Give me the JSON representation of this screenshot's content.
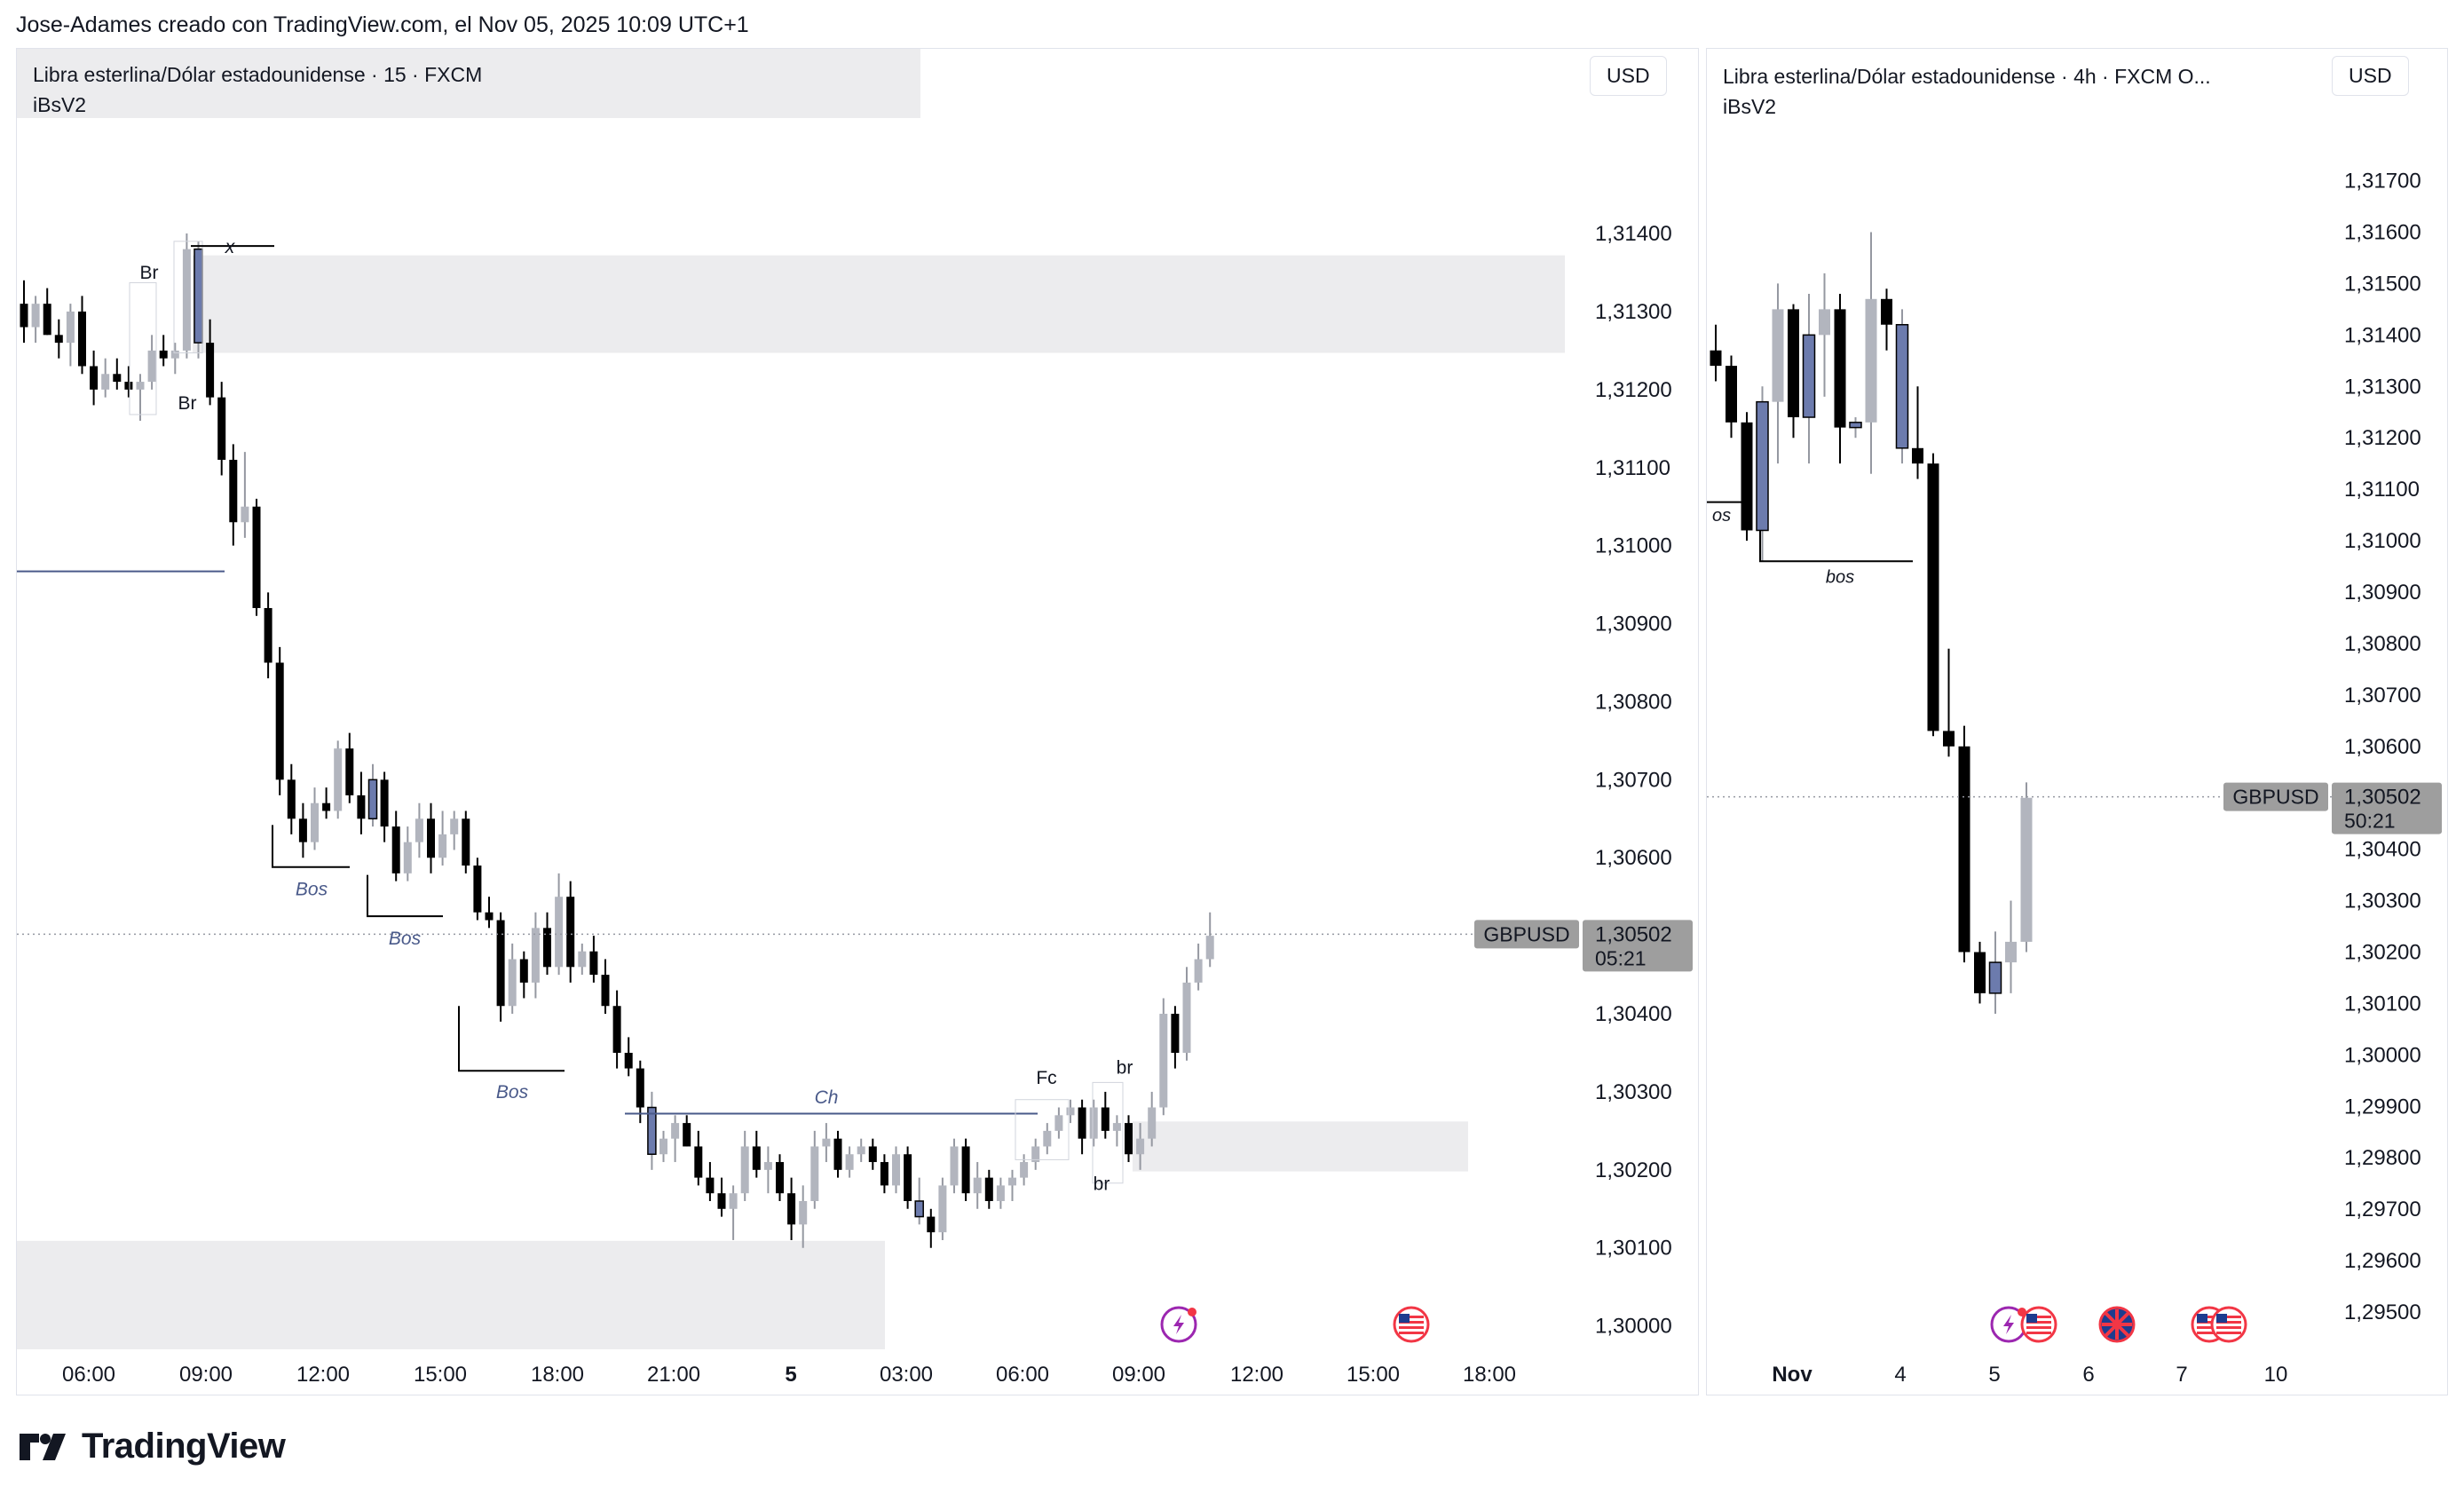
{
  "header": "Jose-Adames creado con TradingView.com, el Nov 05, 2025 10:09 UTC+1",
  "left": {
    "title": "Libra esterlina/Dólar estadounidense · 15 · FXCM",
    "indicator": "iBsV2",
    "currency": "USD",
    "price_labels": [
      "1,31400",
      "1,31300",
      "1,31200",
      "1,31100",
      "1,31000",
      "1,30900",
      "1,30800",
      "1,30700",
      "1,30600",
      "1,30400",
      "1,30300",
      "1,30200",
      "1,30100",
      "1,30000"
    ],
    "time_labels": [
      "06:00",
      "09:00",
      "12:00",
      "15:00",
      "18:00",
      "21:00",
      "5",
      "03:00",
      "06:00",
      "09:00",
      "12:00",
      "15:00",
      "18:00"
    ],
    "symbol_tag": "GBPUSD",
    "last_price": "1,30502",
    "countdown": "05:21",
    "annotations": [
      "Br",
      "x",
      "Br",
      "Bos",
      "Bos",
      "Bos",
      "Ch",
      "Fc",
      "br",
      "br"
    ]
  },
  "right": {
    "title": "Libra esterlina/Dólar estadounidense · 4h · FXCM  O...",
    "indicator": "iBsV2",
    "currency": "USD",
    "price_labels": [
      "1,31700",
      "1,31600",
      "1,31500",
      "1,31400",
      "1,31300",
      "1,31200",
      "1,31100",
      "1,31000",
      "1,30900",
      "1,30800",
      "1,30700",
      "1,30600",
      "1,30400",
      "1,30300",
      "1,30200",
      "1,30100",
      "1,30000",
      "1,29900",
      "1,29800",
      "1,29700",
      "1,29600",
      "1,29500"
    ],
    "time_labels": [
      "Nov",
      "4",
      "5",
      "6",
      "7",
      "10"
    ],
    "symbol_tag": "GBPUSD",
    "last_price": "1,30502",
    "countdown": "50:21",
    "annotations": [
      "os",
      "bos"
    ]
  },
  "brand": "TradingView",
  "icons": [
    "lightning-event-icon",
    "us-flag-icon",
    "uk-flag-icon",
    "tradingview-logo-icon"
  ],
  "colors": {
    "bull_candle": "#b2b5be",
    "bear_candle": "#000000",
    "inside_candle": "#6c7bad",
    "zone": "#ececee",
    "bos_line": "#000000",
    "choch_line": "#4a5a8a",
    "price_tag": "#9e9e9e"
  },
  "chart_data": [
    {
      "type": "candlestick",
      "title": "Libra esterlina/Dólar estadounidense · 15 · FXCM",
      "timeframe": "15",
      "x_ticks": [
        "06:00",
        "09:00",
        "12:00",
        "15:00",
        "18:00",
        "21:00",
        "5",
        "03:00",
        "06:00",
        "09:00",
        "12:00",
        "15:00",
        "18:00"
      ],
      "ylim": [
        1.2997,
        1.3154
      ],
      "last": 1.30502,
      "candles": [
        [
          1.3131,
          1.3134,
          1.3126,
          1.3128
        ],
        [
          1.3128,
          1.3132,
          1.3126,
          1.3131
        ],
        [
          1.3131,
          1.3133,
          1.3127,
          1.3127
        ],
        [
          1.3127,
          1.3129,
          1.3124,
          1.3126
        ],
        [
          1.3126,
          1.3131,
          1.3123,
          1.313
        ],
        [
          1.313,
          1.3132,
          1.3122,
          1.3123
        ],
        [
          1.3123,
          1.3125,
          1.3118,
          1.312
        ],
        [
          1.312,
          1.3124,
          1.3119,
          1.3122
        ],
        [
          1.3122,
          1.3124,
          1.312,
          1.3121
        ],
        [
          1.3121,
          1.3123,
          1.3119,
          1.312
        ],
        [
          1.312,
          1.3122,
          1.3116,
          1.3121
        ],
        [
          1.3121,
          1.3127,
          1.312,
          1.3125
        ],
        [
          1.3125,
          1.3127,
          1.3123,
          1.3124
        ],
        [
          1.3124,
          1.3126,
          1.3122,
          1.3125
        ],
        [
          1.3125,
          1.314,
          1.3124,
          1.3138
        ],
        [
          1.3138,
          1.3139,
          1.3124,
          1.3126
        ],
        [
          1.3126,
          1.3129,
          1.3118,
          1.3119
        ],
        [
          1.3119,
          1.3121,
          1.3109,
          1.3111
        ],
        [
          1.3111,
          1.3113,
          1.31,
          1.3103
        ],
        [
          1.3103,
          1.3112,
          1.3101,
          1.3105
        ],
        [
          1.3105,
          1.3106,
          1.3091,
          1.3092
        ],
        [
          1.3092,
          1.3094,
          1.3083,
          1.3085
        ],
        [
          1.3085,
          1.3087,
          1.3068,
          1.307
        ],
        [
          1.307,
          1.3072,
          1.3063,
          1.3065
        ],
        [
          1.3065,
          1.3067,
          1.306,
          1.3062
        ],
        [
          1.3062,
          1.3069,
          1.3061,
          1.3067
        ],
        [
          1.3067,
          1.3069,
          1.3065,
          1.3066
        ],
        [
          1.3066,
          1.3075,
          1.3065,
          1.3074
        ],
        [
          1.3074,
          1.3076,
          1.3067,
          1.3068
        ],
        [
          1.3068,
          1.3071,
          1.3063,
          1.3065
        ],
        [
          1.3065,
          1.3072,
          1.3064,
          1.307
        ],
        [
          1.307,
          1.3071,
          1.3062,
          1.3064
        ],
        [
          1.3064,
          1.3066,
          1.3057,
          1.3058
        ],
        [
          1.3058,
          1.3064,
          1.3057,
          1.3062
        ],
        [
          1.3062,
          1.3067,
          1.306,
          1.3065
        ],
        [
          1.3065,
          1.3067,
          1.3058,
          1.306
        ],
        [
          1.306,
          1.3066,
          1.3059,
          1.3063
        ],
        [
          1.3063,
          1.3066,
          1.3061,
          1.3065
        ],
        [
          1.3065,
          1.3066,
          1.3058,
          1.3059
        ],
        [
          1.3059,
          1.306,
          1.3052,
          1.3053
        ],
        [
          1.3053,
          1.3055,
          1.3051,
          1.3052
        ],
        [
          1.3052,
          1.3053,
          1.3039,
          1.3041
        ],
        [
          1.3041,
          1.3049,
          1.304,
          1.3047
        ],
        [
          1.3047,
          1.3048,
          1.3042,
          1.3044
        ],
        [
          1.3044,
          1.3053,
          1.3042,
          1.3051
        ],
        [
          1.3051,
          1.3053,
          1.3045,
          1.3046
        ],
        [
          1.3046,
          1.3058,
          1.3045,
          1.3055
        ],
        [
          1.3055,
          1.3057,
          1.3044,
          1.3046
        ],
        [
          1.3046,
          1.3049,
          1.3045,
          1.3048
        ],
        [
          1.3048,
          1.305,
          1.3044,
          1.3045
        ],
        [
          1.3045,
          1.3047,
          1.304,
          1.3041
        ],
        [
          1.3041,
          1.3043,
          1.3033,
          1.3035
        ],
        [
          1.3035,
          1.3037,
          1.3032,
          1.3033
        ],
        [
          1.3033,
          1.3034,
          1.3026,
          1.3028
        ],
        [
          1.3028,
          1.303,
          1.302,
          1.3022
        ],
        [
          1.3022,
          1.3025,
          1.3021,
          1.3024
        ],
        [
          1.3024,
          1.3027,
          1.3021,
          1.3026
        ],
        [
          1.3026,
          1.3027,
          1.3023,
          1.3023
        ],
        [
          1.3023,
          1.3025,
          1.3018,
          1.3019
        ],
        [
          1.3019,
          1.3021,
          1.3016,
          1.3017
        ],
        [
          1.3017,
          1.3019,
          1.3014,
          1.3015
        ],
        [
          1.3015,
          1.3018,
          1.3011,
          1.3017
        ],
        [
          1.3017,
          1.3025,
          1.3016,
          1.3023
        ],
        [
          1.3023,
          1.3025,
          1.3019,
          1.302
        ],
        [
          1.302,
          1.3023,
          1.3017,
          1.3021
        ],
        [
          1.3021,
          1.3022,
          1.3016,
          1.3017
        ],
        [
          1.3017,
          1.3019,
          1.3011,
          1.3013
        ],
        [
          1.3013,
          1.3018,
          1.301,
          1.3016
        ],
        [
          1.3016,
          1.3025,
          1.3015,
          1.3023
        ],
        [
          1.3023,
          1.3026,
          1.3021,
          1.3024
        ],
        [
          1.3024,
          1.3025,
          1.3019,
          1.302
        ],
        [
          1.302,
          1.3023,
          1.3019,
          1.3022
        ],
        [
          1.3022,
          1.3024,
          1.3021,
          1.3023
        ],
        [
          1.3023,
          1.3024,
          1.302,
          1.3021
        ],
        [
          1.3021,
          1.3022,
          1.3017,
          1.3018
        ],
        [
          1.3018,
          1.3023,
          1.3017,
          1.3022
        ],
        [
          1.3022,
          1.3023,
          1.3015,
          1.3016
        ],
        [
          1.3016,
          1.3019,
          1.3013,
          1.3014
        ],
        [
          1.3014,
          1.3015,
          1.301,
          1.3012
        ],
        [
          1.3012,
          1.3019,
          1.3011,
          1.3018
        ],
        [
          1.3018,
          1.3024,
          1.3017,
          1.3023
        ],
        [
          1.3023,
          1.3024,
          1.3016,
          1.3017
        ],
        [
          1.3017,
          1.3021,
          1.3015,
          1.3019
        ],
        [
          1.3019,
          1.302,
          1.3015,
          1.3016
        ],
        [
          1.3016,
          1.3019,
          1.3015,
          1.3018
        ],
        [
          1.3018,
          1.302,
          1.3016,
          1.3019
        ],
        [
          1.3019,
          1.3022,
          1.3018,
          1.3021
        ],
        [
          1.3021,
          1.3024,
          1.302,
          1.3023
        ],
        [
          1.3023,
          1.3026,
          1.3022,
          1.3025
        ],
        [
          1.3025,
          1.3028,
          1.3024,
          1.3027
        ],
        [
          1.3027,
          1.3029,
          1.3026,
          1.3028
        ],
        [
          1.3028,
          1.3029,
          1.3022,
          1.3024
        ],
        [
          1.3024,
          1.3029,
          1.3023,
          1.3028
        ],
        [
          1.3028,
          1.303,
          1.3024,
          1.3025
        ],
        [
          1.3025,
          1.3027,
          1.3023,
          1.3026
        ],
        [
          1.3026,
          1.3027,
          1.3021,
          1.3022
        ],
        [
          1.3022,
          1.3026,
          1.302,
          1.3024
        ],
        [
          1.3024,
          1.303,
          1.3023,
          1.3028
        ],
        [
          1.3028,
          1.3042,
          1.3027,
          1.304
        ],
        [
          1.304,
          1.3041,
          1.3033,
          1.3035
        ],
        [
          1.3035,
          1.3046,
          1.3034,
          1.3044
        ],
        [
          1.3044,
          1.3049,
          1.3043,
          1.3047
        ],
        [
          1.3047,
          1.3053,
          1.3046,
          1.305
        ]
      ]
    },
    {
      "type": "candlestick",
      "title": "Libra esterlina/Dólar estadounidense · 4h · FXCM",
      "timeframe": "4h",
      "x_ticks": [
        "Nov",
        "4",
        "5",
        "6",
        "7",
        "10"
      ],
      "ylim": [
        1.2945,
        1.3177
      ],
      "last": 1.30502,
      "candles": [
        [
          1.3137,
          1.3142,
          1.3131,
          1.3134
        ],
        [
          1.3134,
          1.3136,
          1.312,
          1.3123
        ],
        [
          1.3123,
          1.3125,
          1.31,
          1.3102
        ],
        [
          1.3102,
          1.313,
          1.3096,
          1.3127
        ],
        [
          1.3127,
          1.315,
          1.3115,
          1.3145
        ],
        [
          1.3145,
          1.3146,
          1.312,
          1.3124
        ],
        [
          1.3124,
          1.3148,
          1.3115,
          1.314
        ],
        [
          1.314,
          1.3152,
          1.3128,
          1.3145
        ],
        [
          1.3145,
          1.3148,
          1.3115,
          1.3122
        ],
        [
          1.3122,
          1.3124,
          1.312,
          1.3123
        ],
        [
          1.3123,
          1.316,
          1.3113,
          1.3147
        ],
        [
          1.3147,
          1.3149,
          1.3137,
          1.3142
        ],
        [
          1.3142,
          1.3145,
          1.3115,
          1.3118
        ],
        [
          1.3118,
          1.313,
          1.3112,
          1.3115
        ],
        [
          1.3115,
          1.3117,
          1.3062,
          1.3063
        ],
        [
          1.3063,
          1.3079,
          1.3058,
          1.306
        ],
        [
          1.306,
          1.3064,
          1.3018,
          1.302
        ],
        [
          1.302,
          1.3022,
          1.301,
          1.3012
        ],
        [
          1.3012,
          1.3024,
          1.3008,
          1.3018
        ],
        [
          1.3018,
          1.303,
          1.3012,
          1.3022
        ],
        [
          1.3022,
          1.3053,
          1.302,
          1.305
        ]
      ]
    }
  ]
}
